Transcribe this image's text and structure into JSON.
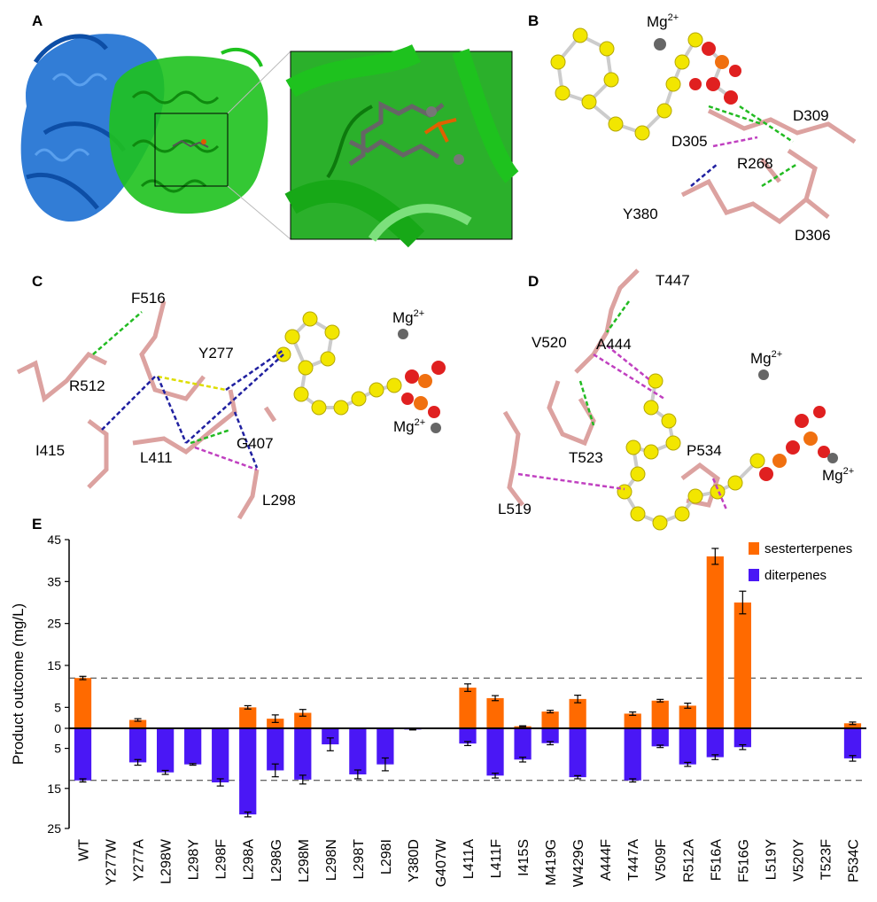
{
  "panels": {
    "A": {
      "letter": "A"
    },
    "B": {
      "letter": "B",
      "ions": [
        {
          "label": "Mg",
          "sup": "2+"
        }
      ],
      "residues": [
        "D309",
        "D305",
        "R268",
        "Y380",
        "D306"
      ]
    },
    "C": {
      "letter": "C",
      "ions": [
        {
          "label": "Mg",
          "sup": "2+"
        },
        {
          "label": "Mg",
          "sup": "2+"
        }
      ],
      "residues": [
        "F516",
        "Y277",
        "R512",
        "G407",
        "I415",
        "L411",
        "L298"
      ]
    },
    "D": {
      "letter": "D",
      "ions": [
        {
          "label": "Mg",
          "sup": "2+"
        },
        {
          "label": "Mg",
          "sup": "2+"
        }
      ],
      "residues": [
        "T447",
        "V520",
        "A444",
        "T523",
        "P534",
        "L519"
      ]
    },
    "E": {
      "letter": "E"
    }
  },
  "colors": {
    "sesterterpenes": "#ff6a00",
    "diterpenes": "#4a17f5",
    "protein_blue": "#1c6fd1",
    "protein_green": "#1ec21e",
    "ligand_yellow": "#f2e600",
    "residue_pink": "#dca2a0"
  },
  "chart_data": {
    "type": "bar",
    "ylabel": "Product outcome (mg/L)",
    "upper_ticks": [
      "45",
      "35",
      "25",
      "15",
      "5"
    ],
    "lower_ticks": [
      "5",
      "15",
      "25"
    ],
    "zero_label": "0",
    "upper_range": [
      0,
      45
    ],
    "lower_range": [
      0,
      25
    ],
    "reference_lines": [
      12,
      13
    ],
    "categories": [
      "WT",
      "Y277W",
      "Y277A",
      "L298W",
      "L298Y",
      "L298F",
      "L298A",
      "L298G",
      "L298M",
      "L298N",
      "L298T",
      "L298I",
      "Y380D",
      "G407W",
      "L411A",
      "L411F",
      "I415S",
      "M419G",
      "W429G",
      "A444F",
      "T447A",
      "V509F",
      "R512A",
      "F516A",
      "F516G",
      "L519Y",
      "V520Y",
      "T523F",
      "P534C"
    ],
    "series": [
      {
        "name": "sesterterpenes",
        "values": [
          12,
          0,
          2,
          0,
          0,
          0,
          5,
          2.3,
          3.7,
          0,
          0,
          0,
          0,
          0,
          9.7,
          7.2,
          0.5,
          4,
          7,
          0,
          3.5,
          6.6,
          5.4,
          41,
          30,
          0,
          0,
          0,
          1.2
        ],
        "errors": [
          0.4,
          0,
          0.3,
          0,
          0,
          0,
          0.4,
          0.9,
          0.8,
          0,
          0,
          0,
          0,
          0,
          0.9,
          0.6,
          0.1,
          0.3,
          0.9,
          0,
          0.4,
          0.3,
          0.6,
          1.9,
          2.7,
          0,
          0,
          0,
          0.3
        ]
      },
      {
        "name": "diterpenes",
        "values": [
          13,
          0,
          8.5,
          11,
          9,
          13.5,
          21.5,
          10.5,
          12.8,
          4,
          11.5,
          9,
          0.3,
          0,
          3.8,
          11.8,
          7.8,
          3.7,
          12.2,
          0,
          13,
          4.5,
          9,
          7.2,
          4.7,
          0,
          0,
          0,
          7.5
        ],
        "errors": [
          0.4,
          0,
          0.7,
          0.5,
          0.2,
          0.9,
          0.6,
          1.6,
          1.1,
          1.6,
          1.1,
          1.6,
          0.1,
          0,
          0.5,
          0.6,
          0.6,
          0.4,
          0.4,
          0,
          0.4,
          0.3,
          0.5,
          0.6,
          0.6,
          0,
          0,
          0,
          0.7
        ]
      }
    ],
    "legend_position": "top-right"
  }
}
